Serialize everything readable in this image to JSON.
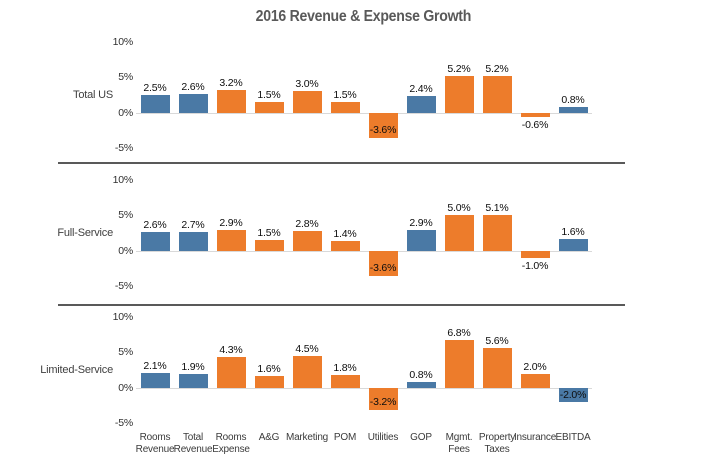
{
  "title": "2016 Revenue & Expense Growth",
  "colors": {
    "revenue_bar": "#4A79A5",
    "expense_bar": "#ED7C2B",
    "title_text": "#595959",
    "axis_zero_line": "#D9D9D9",
    "panel_separator": "#595959",
    "label_text": "#0D0D0D"
  },
  "chart_data": {
    "type": "bar",
    "title": "2016 Revenue & Expense Growth",
    "xlabel": "",
    "ylabel": "",
    "ylim": [
      -5,
      10
    ],
    "grid": false,
    "legend": "none",
    "unit": "%",
    "y_ticks": {
      "values": [
        10,
        5,
        0,
        -5
      ],
      "labels": [
        "10%",
        "5%",
        "0%",
        "-5%"
      ]
    },
    "categories": [
      "Rooms Revenue",
      "Total Revenue",
      "Rooms Expense",
      "A&G",
      "Marketing",
      "POM",
      "Utilities",
      "GOP",
      "Mgmt. Fees",
      "Property Taxes",
      "Insurance",
      "EBITDA"
    ],
    "category_lines": [
      [
        "Rooms",
        "Revenue"
      ],
      [
        "Total",
        "Revenue"
      ],
      [
        "Rooms",
        "Expense"
      ],
      [
        "A&G"
      ],
      [
        "Marketing"
      ],
      [
        "POM"
      ],
      [
        "Utilities"
      ],
      [
        "GOP"
      ],
      [
        "Mgmt.",
        "Fees"
      ],
      [
        "Property",
        "Taxes"
      ],
      [
        "Insurance"
      ],
      [
        "EBITDA"
      ]
    ],
    "bar_color_key": [
      "revenue",
      "revenue",
      "expense",
      "expense",
      "expense",
      "expense",
      "expense",
      "revenue",
      "expense",
      "expense",
      "expense",
      "revenue"
    ],
    "panels": [
      {
        "label": "Total US",
        "values": [
          2.5,
          2.6,
          3.2,
          1.5,
          3.0,
          1.5,
          -3.6,
          2.4,
          5.2,
          5.2,
          -0.6,
          0.8
        ],
        "value_labels": [
          "2.5%",
          "2.6%",
          "3.2%",
          "1.5%",
          "3.0%",
          "1.5%",
          "-3.6%",
          "2.4%",
          "5.2%",
          "5.2%",
          "-0.6%",
          "0.8%"
        ]
      },
      {
        "label": "Full-Service",
        "values": [
          2.6,
          2.7,
          2.9,
          1.5,
          2.8,
          1.4,
          -3.6,
          2.9,
          5.0,
          5.1,
          -1.0,
          1.6
        ],
        "value_labels": [
          "2.6%",
          "2.7%",
          "2.9%",
          "1.5%",
          "2.8%",
          "1.4%",
          "-3.6%",
          "2.9%",
          "5.0%",
          "5.1%",
          "-1.0%",
          "1.6%"
        ]
      },
      {
        "label": "Limited-Service",
        "values": [
          2.1,
          1.9,
          4.3,
          1.6,
          4.5,
          1.8,
          -3.2,
          0.8,
          6.8,
          5.6,
          2.0,
          -2.0
        ],
        "value_labels": [
          "2.1%",
          "1.9%",
          "4.3%",
          "1.6%",
          "4.5%",
          "1.8%",
          "-3.2%",
          "0.8%",
          "6.8%",
          "5.6%",
          "2.0%",
          "-2.0%"
        ]
      }
    ]
  }
}
